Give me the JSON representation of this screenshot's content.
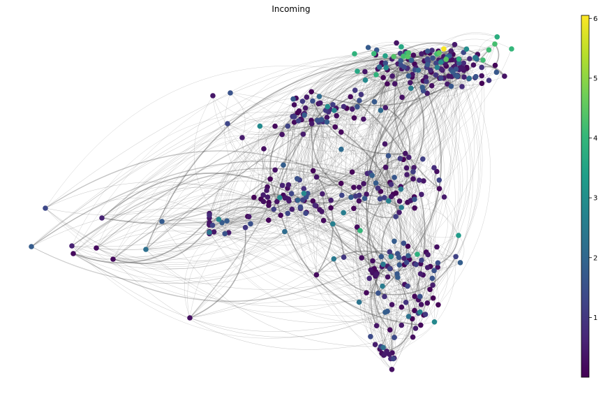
{
  "title": "Incoming",
  "colorbar": {
    "min": 0,
    "max": 6.05,
    "ticks": [
      "1",
      "2",
      "3",
      "4",
      "5",
      "6"
    ],
    "colormap": [
      "#440154",
      "#482878",
      "#3e4989",
      "#31688e",
      "#26828e",
      "#1f9e89",
      "#35b779",
      "#6ece58",
      "#b5de2b",
      "#fde725"
    ]
  },
  "graph": {
    "edge_color": "#555555",
    "node_count_approx": 480
  }
}
